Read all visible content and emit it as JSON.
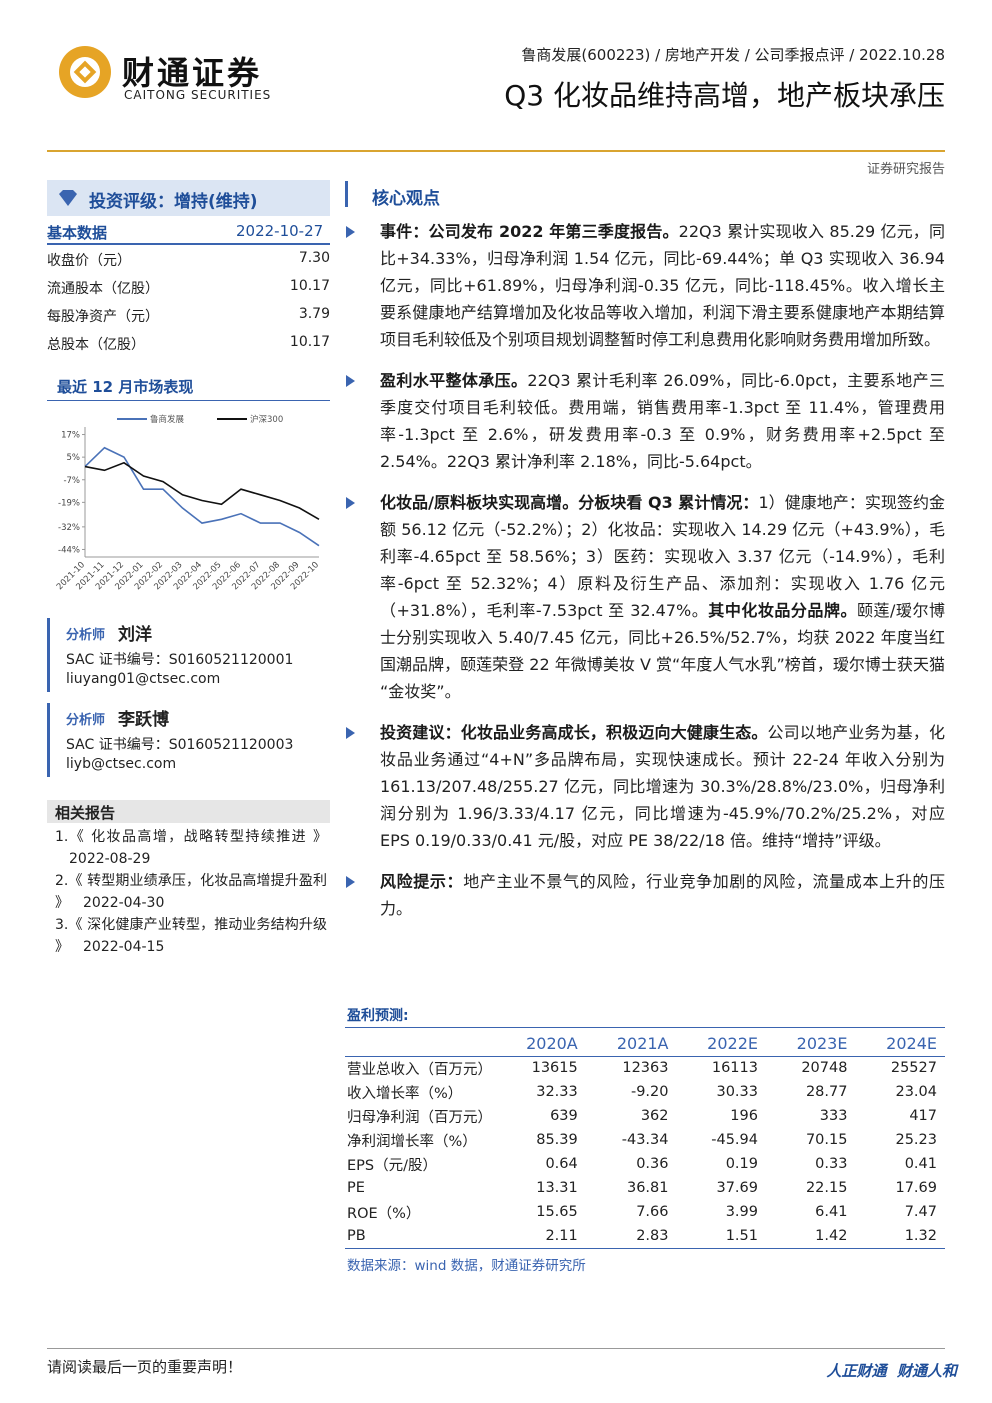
{
  "header": {
    "logo_name": "财通证券",
    "logo_en": "CAITONG SECURITIES",
    "breadcrumb": "鲁商发展(600223) / 房地产开发 / 公司季报点评 / 2022.10.28",
    "title": "Q3 化妆品维持高增，地产板块承压",
    "tag": "证券研究报告"
  },
  "sidebar": {
    "rating": "投资评级：增持(维持)",
    "basic": {
      "title": "基本数据",
      "date": "2022-10-27",
      "rows": [
        [
          "收盘价（元）",
          "7.30"
        ],
        [
          "流通股本（亿股）",
          "10.17"
        ],
        [
          "每股净资产（元）",
          "3.79"
        ],
        [
          "总股本（亿股）",
          "10.17"
        ]
      ]
    },
    "chart_title": "最近 12 月市场表现",
    "chart_data": {
      "type": "line",
      "categories": [
        "2021-10",
        "2021-11",
        "2021-12",
        "2022-01",
        "2022-02",
        "2022-03",
        "2022-04",
        "2022-05",
        "2022-06",
        "2022-07",
        "2022-08",
        "2022-09",
        "2022-10"
      ],
      "series": [
        {
          "name": "鲁商发展",
          "color": "#4a72b8",
          "values": [
            0,
            10,
            5,
            -12,
            -12,
            -22,
            -30,
            -28,
            -25,
            -30,
            -30,
            -35,
            -42
          ]
        },
        {
          "name": "沪深300",
          "color": "#111111",
          "values": [
            0,
            -2,
            2,
            -5,
            -8,
            -15,
            -18,
            -20,
            -12,
            -15,
            -18,
            -22,
            -28
          ]
        }
      ],
      "ylim": [
        -48,
        21
      ],
      "yticks": [
        {
          "value": 17,
          "label": "17%"
        },
        {
          "value": 5,
          "label": "5%"
        },
        {
          "value": -7,
          "label": "-7%"
        },
        {
          "value": -19,
          "label": "-19%"
        },
        {
          "value": -32,
          "label": "-32%"
        },
        {
          "value": -44,
          "label": "-44%"
        }
      ]
    },
    "analysts": [
      {
        "role": "分析师",
        "name": "刘洋",
        "sac": "SAC 证书编号：S0160521120001",
        "email": "liuyang01@ctsec.com"
      },
      {
        "role": "分析师",
        "name": "李跃博",
        "sac": "SAC 证书编号：S0160521120003",
        "email": "liyb@ctsec.com"
      }
    ],
    "related": {
      "title": "相关报告",
      "items": [
        {
          "text": "1.《 化妆品高增，战略转型持续推进 》",
          "date": "2022-08-29"
        },
        {
          "text": "2.《 转型期业绩承压，化妆品高增提升盈利 》",
          "date": "2022-04-30"
        },
        {
          "text": "3.《 深化健康产业转型，推动业务结构升级 》",
          "date": "2022-04-15"
        }
      ]
    }
  },
  "main": {
    "section_title": "核心观点",
    "paragraphs": [
      {
        "lead": "事件：公司发布 2022 年第三季度报告。",
        "text": "22Q3 累计实现收入 85.29 亿元，同比+34.33%，归母净利润 1.54 亿元，同比-69.44%；单 Q3 实现收入 36.94 亿元，同比+61.89%，归母净利润-0.35 亿元，同比-118.45%。收入增长主要系健康地产结算增加及化妆品等收入增加，利润下滑主要系健康地产本期结算项目毛利较低及个别项目规划调整暂时停工利息费用化影响财务费用增加所致。"
      },
      {
        "lead": "盈利水平整体承压。",
        "text": "22Q3 累计毛利率 26.09%，同比-6.0pct，主要系地产三季度交付项目毛利较低。费用端，销售费用率-1.3pct 至 11.4%，管理费用率-1.3pct 至 2.6%，研发费用率-0.3 至 0.9%，财务费用率+2.5pct 至 2.54%。22Q3 累计净利率 2.18%，同比-5.64pct。"
      },
      {
        "lead": "化妆品/原料板块实现高增。分板块看 Q3 累计情况：",
        "text": "1）健康地产：实现签约金额 56.12 亿元（-52.2%）；2）化妆品：实现收入 14.29 亿元（+43.9%），毛利率-4.65pct 至 58.56%；3）医药：实现收入 3.37 亿元（-14.9%），毛利率-6pct 至 52.32%；4）原料及衍生产品、添加剂：实现收入 1.76 亿元（+31.8%），毛利率-7.53pct 至 32.47%。",
        "lead2": "其中化妆品分品牌。",
        "text2": "颐莲/瑷尔博士分别实现收入 5.40/7.45 亿元，同比+26.5%/52.7%，均获 2022 年度当红国潮品牌，颐莲荣登 22 年微博美妆 V 赏“年度人气水乳”榜首，瑷尔博士获天猫“金妆奖”。"
      },
      {
        "lead": "投资建议：化妆品业务高成长，积极迈向大健康生态。",
        "text": "公司以地产业务为基，化妆品业务通过“4+N”多品牌布局，实现快速成长。预计 22-24 年收入分别为 161.13/207.48/255.27 亿元，同比增速为 30.3%/28.8%/23.0%，归母净利润分别为 1.96/3.33/4.17 亿元，同比增速为-45.9%/70.2%/25.2%，对应 EPS 0.19/0.33/0.41 元/股，对应 PE 38/22/18 倍。维持“增持”评级。"
      },
      {
        "lead": "风险提示：",
        "text": "地产主业不景气的风险，行业竞争加剧的风险，流量成本上升的压力。"
      }
    ]
  },
  "forecast": {
    "title": "盈利预测:",
    "header": [
      "2020A",
      "2021A",
      "2022E",
      "2023E",
      "2024E"
    ],
    "rows": [
      [
        "营业总收入（百万元）",
        "13615",
        "12363",
        "16113",
        "20748",
        "25527"
      ],
      [
        "收入增长率（%）",
        "32.33",
        "-9.20",
        "30.33",
        "28.77",
        "23.04"
      ],
      [
        "归母净利润（百万元）",
        "639",
        "362",
        "196",
        "333",
        "417"
      ],
      [
        "净利润增长率（%）",
        "85.39",
        "-43.34",
        "-45.94",
        "70.15",
        "25.23"
      ],
      [
        "EPS（元/股）",
        "0.64",
        "0.36",
        "0.19",
        "0.33",
        "0.41"
      ],
      [
        "PE",
        "13.31",
        "36.81",
        "37.69",
        "22.15",
        "17.69"
      ],
      [
        "ROE（%）",
        "15.65",
        "7.66",
        "3.99",
        "6.41",
        "7.47"
      ],
      [
        "PB",
        "2.11",
        "2.83",
        "1.51",
        "1.42",
        "1.32"
      ]
    ],
    "source": "数据来源：wind 数据，财通证券研究所"
  },
  "footer": {
    "notice": "请阅读最后一页的重要声明！",
    "slogan": "人正财通  财通人和"
  }
}
